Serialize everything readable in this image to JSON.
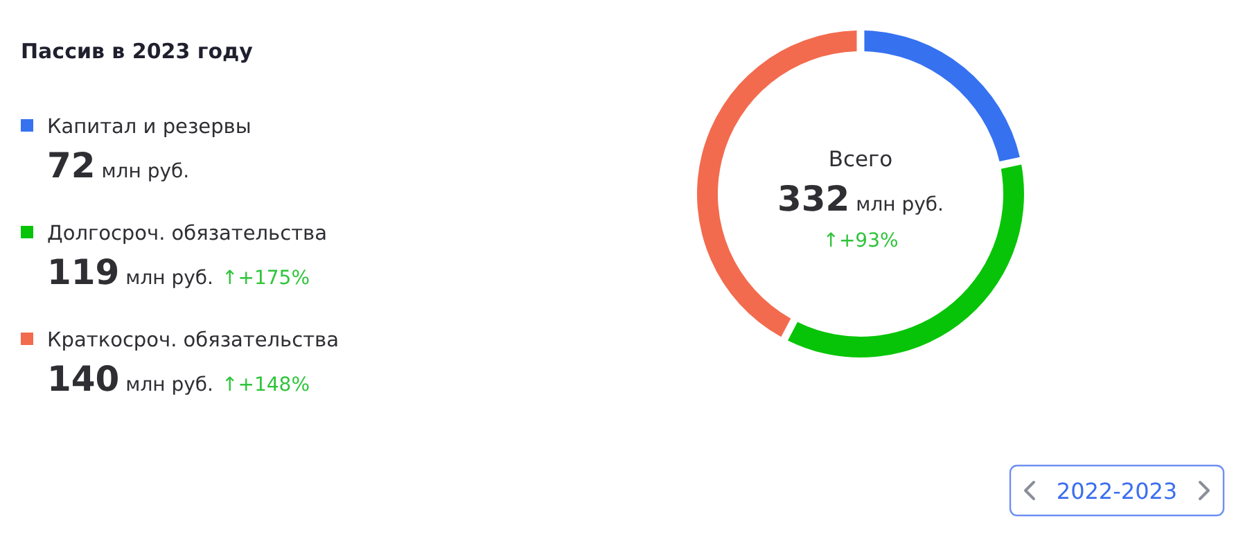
{
  "chart_data": {
    "type": "donut",
    "title": "Пассив в 2023 году",
    "categories": [
      "Капитал и резервы",
      "Долгосроч. обязательства",
      "Краткосроч. обязательства"
    ],
    "values": [
      72,
      119,
      140
    ],
    "colors": [
      "#3671f0",
      "#08c408",
      "#f26b4e"
    ],
    "value_labels": [
      "72 млн руб.",
      "119 млн руб.",
      "140 млн руб."
    ],
    "legend": "left",
    "annotations": [
      "Всего",
      "332 млн руб.",
      "↑+93%",
      "↑+175%",
      "↑+148%",
      "2022-2023"
    ]
  }
}
